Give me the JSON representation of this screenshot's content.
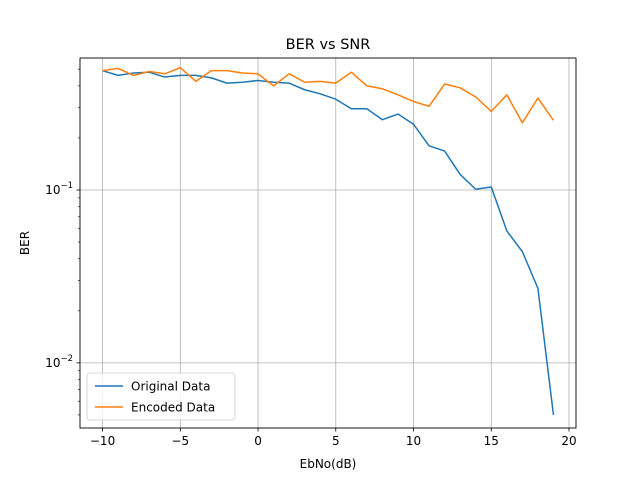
{
  "chart_data": {
    "type": "line",
    "title": "BER vs SNR",
    "xlabel": "EbNo(dB)",
    "ylabel": "BER",
    "yscale": "log",
    "xlim": [
      -11.45,
      20.45
    ],
    "ylim": [
      0.0042,
      0.58
    ],
    "grid": true,
    "legend_position": "bottom-left",
    "x_ticks": [
      -10,
      -5,
      0,
      5,
      10,
      15,
      20
    ],
    "x_tick_labels": [
      "−10",
      "−5",
      "0",
      "5",
      "10",
      "15",
      "20"
    ],
    "y_ticks": [
      {
        "value": 0.1,
        "base": "10",
        "exp": "−1"
      },
      {
        "value": 0.01,
        "base": "10",
        "exp": "−2"
      }
    ],
    "x": [
      -10,
      -9,
      -8,
      -7,
      -6,
      -5,
      -4,
      -3,
      -2,
      -1,
      0,
      1,
      2,
      3,
      4,
      5,
      6,
      7,
      8,
      9,
      10,
      11,
      12,
      13,
      14,
      15,
      16,
      17,
      18,
      19
    ],
    "series": [
      {
        "name": "Original Data",
        "color": "#1f77b4",
        "values": [
          0.49,
          0.46,
          0.475,
          0.48,
          0.45,
          0.46,
          0.46,
          0.445,
          0.415,
          0.42,
          0.43,
          0.42,
          0.415,
          0.38,
          0.36,
          0.335,
          0.295,
          0.295,
          0.255,
          0.275,
          0.24,
          0.18,
          0.168,
          0.123,
          0.101,
          0.104,
          0.058,
          0.044,
          0.027,
          0.005
        ]
      },
      {
        "name": "Encoded Data",
        "color": "#ff7f0e",
        "values": [
          0.49,
          0.505,
          0.46,
          0.485,
          0.47,
          0.51,
          0.425,
          0.49,
          0.49,
          0.475,
          0.47,
          0.4,
          0.47,
          0.42,
          0.425,
          0.415,
          0.48,
          0.4,
          0.385,
          0.355,
          0.325,
          0.305,
          0.41,
          0.39,
          0.345,
          0.285,
          0.355,
          0.245,
          0.34,
          0.253
        ]
      }
    ]
  }
}
